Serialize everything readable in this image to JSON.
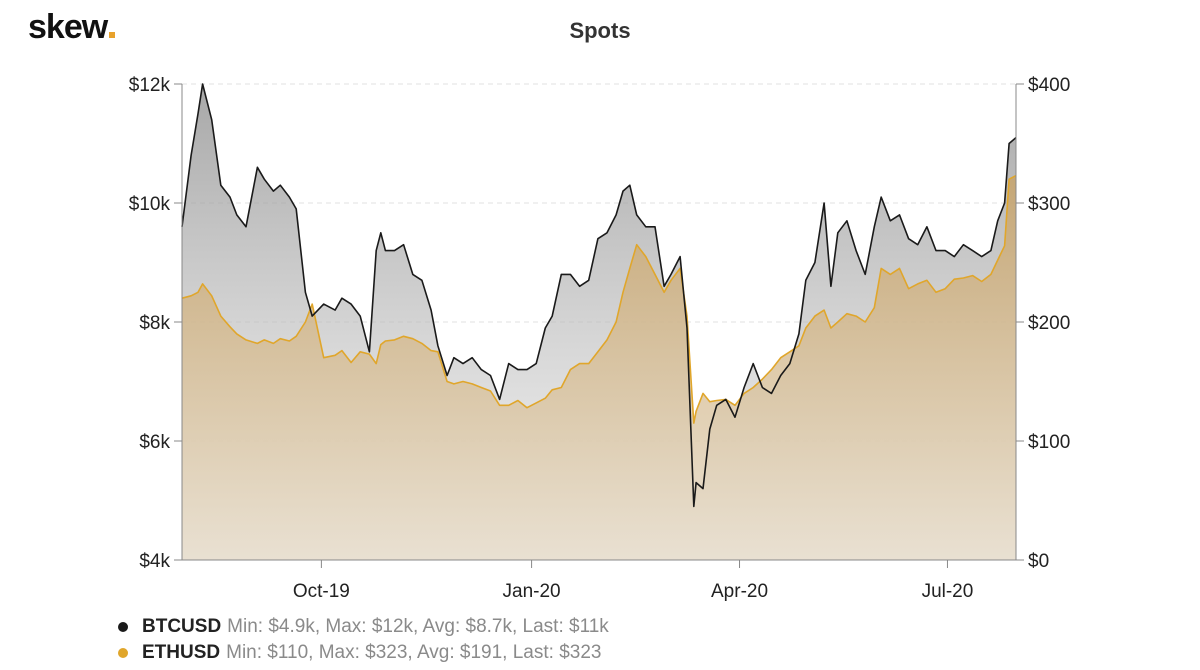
{
  "logo": {
    "text": "skew"
  },
  "chart_data": {
    "type": "area",
    "title": "Spots",
    "x_ticks": [
      "Oct-19",
      "Jan-20",
      "Apr-20",
      "Jul-20"
    ],
    "x_tick_dates": [
      "2019-10-01",
      "2020-01-01",
      "2020-04-01",
      "2020-07-01"
    ],
    "x_range": [
      "2019-08-01",
      "2020-07-31"
    ],
    "y_left": {
      "ticks": [
        "$4k",
        "$6k",
        "$8k",
        "$10k",
        "$12k"
      ],
      "values": [
        4000,
        6000,
        8000,
        10000,
        12000
      ],
      "range": [
        4000,
        12000
      ]
    },
    "y_right": {
      "ticks": [
        "$0",
        "$100",
        "$200",
        "$300",
        "$400"
      ],
      "values": [
        0,
        100,
        200,
        300,
        400
      ],
      "range": [
        0,
        400
      ]
    },
    "grid": "horizontal dashed",
    "legend_position": "bottom-left",
    "series": [
      {
        "name": "BTCUSD",
        "axis": "left",
        "color": "#1a1a1a",
        "x": [
          "2019-08-01",
          "2019-08-05",
          "2019-08-08",
          "2019-08-10",
          "2019-08-14",
          "2019-08-18",
          "2019-08-22",
          "2019-08-25",
          "2019-08-29",
          "2019-09-03",
          "2019-09-06",
          "2019-09-10",
          "2019-09-13",
          "2019-09-17",
          "2019-09-20",
          "2019-09-24",
          "2019-09-27",
          "2019-10-02",
          "2019-10-07",
          "2019-10-10",
          "2019-10-14",
          "2019-10-18",
          "2019-10-22",
          "2019-10-25",
          "2019-10-27",
          "2019-10-29",
          "2019-11-02",
          "2019-11-06",
          "2019-11-10",
          "2019-11-14",
          "2019-11-18",
          "2019-11-21",
          "2019-11-25",
          "2019-11-28",
          "2019-12-02",
          "2019-12-06",
          "2019-12-10",
          "2019-12-14",
          "2019-12-18",
          "2019-12-22",
          "2019-12-26",
          "2019-12-30",
          "2020-01-03",
          "2020-01-07",
          "2020-01-10",
          "2020-01-14",
          "2020-01-18",
          "2020-01-22",
          "2020-01-26",
          "2020-01-30",
          "2020-02-03",
          "2020-02-07",
          "2020-02-10",
          "2020-02-13",
          "2020-02-16",
          "2020-02-20",
          "2020-02-24",
          "2020-02-28",
          "2020-03-02",
          "2020-03-06",
          "2020-03-09",
          "2020-03-12",
          "2020-03-13",
          "2020-03-16",
          "2020-03-19",
          "2020-03-22",
          "2020-03-26",
          "2020-03-30",
          "2020-04-03",
          "2020-04-07",
          "2020-04-11",
          "2020-04-15",
          "2020-04-19",
          "2020-04-23",
          "2020-04-27",
          "2020-04-30",
          "2020-05-04",
          "2020-05-08",
          "2020-05-11",
          "2020-05-14",
          "2020-05-18",
          "2020-05-22",
          "2020-05-26",
          "2020-05-30",
          "2020-06-02",
          "2020-06-06",
          "2020-06-10",
          "2020-06-14",
          "2020-06-18",
          "2020-06-22",
          "2020-06-26",
          "2020-06-30",
          "2020-07-04",
          "2020-07-08",
          "2020-07-12",
          "2020-07-16",
          "2020-07-20",
          "2020-07-23",
          "2020-07-26",
          "2020-07-28",
          "2020-07-31"
        ],
        "values": [
          9600,
          10800,
          11500,
          12000,
          11400,
          10300,
          10100,
          9800,
          9600,
          10600,
          10400,
          10200,
          10300,
          10100,
          9900,
          8500,
          8100,
          8300,
          8200,
          8400,
          8300,
          8100,
          7500,
          9200,
          9500,
          9200,
          9200,
          9300,
          8800,
          8700,
          8200,
          7600,
          7100,
          7400,
          7300,
          7400,
          7200,
          7100,
          6700,
          7300,
          7200,
          7200,
          7300,
          7900,
          8100,
          8800,
          8800,
          8600,
          8700,
          9400,
          9500,
          9800,
          10200,
          10300,
          9800,
          9600,
          9600,
          8600,
          8800,
          9100,
          7900,
          4900,
          5300,
          5200,
          6200,
          6600,
          6700,
          6400,
          6900,
          7300,
          6900,
          6800,
          7100,
          7300,
          7800,
          8700,
          9000,
          10000,
          8600,
          9500,
          9700,
          9200,
          8800,
          9600,
          10100,
          9700,
          9800,
          9400,
          9300,
          9600,
          9200,
          9200,
          9100,
          9300,
          9200,
          9100,
          9200,
          9700,
          10000,
          11000,
          11100
        ],
        "stats": "Min: $4.9k, Max: $12k, Avg: $8.7k, Last: $11k"
      },
      {
        "name": "ETHUSD",
        "axis": "right",
        "color": "#e0a62b",
        "x": [
          "2019-08-01",
          "2019-08-05",
          "2019-08-08",
          "2019-08-10",
          "2019-08-14",
          "2019-08-18",
          "2019-08-22",
          "2019-08-25",
          "2019-08-29",
          "2019-09-03",
          "2019-09-06",
          "2019-09-10",
          "2019-09-13",
          "2019-09-17",
          "2019-09-20",
          "2019-09-24",
          "2019-09-27",
          "2019-10-02",
          "2019-10-07",
          "2019-10-10",
          "2019-10-14",
          "2019-10-18",
          "2019-10-22",
          "2019-10-25",
          "2019-10-27",
          "2019-10-29",
          "2019-11-02",
          "2019-11-06",
          "2019-11-10",
          "2019-11-14",
          "2019-11-18",
          "2019-11-21",
          "2019-11-25",
          "2019-11-28",
          "2019-12-02",
          "2019-12-06",
          "2019-12-10",
          "2019-12-14",
          "2019-12-18",
          "2019-12-22",
          "2019-12-26",
          "2019-12-30",
          "2020-01-03",
          "2020-01-07",
          "2020-01-10",
          "2020-01-14",
          "2020-01-18",
          "2020-01-22",
          "2020-01-26",
          "2020-01-30",
          "2020-02-03",
          "2020-02-07",
          "2020-02-10",
          "2020-02-13",
          "2020-02-16",
          "2020-02-20",
          "2020-02-24",
          "2020-02-28",
          "2020-03-02",
          "2020-03-06",
          "2020-03-09",
          "2020-03-12",
          "2020-03-13",
          "2020-03-16",
          "2020-03-19",
          "2020-03-22",
          "2020-03-26",
          "2020-03-30",
          "2020-04-03",
          "2020-04-07",
          "2020-04-11",
          "2020-04-15",
          "2020-04-19",
          "2020-04-23",
          "2020-04-27",
          "2020-04-30",
          "2020-05-04",
          "2020-05-08",
          "2020-05-11",
          "2020-05-14",
          "2020-05-18",
          "2020-05-22",
          "2020-05-26",
          "2020-05-30",
          "2020-06-02",
          "2020-06-06",
          "2020-06-10",
          "2020-06-14",
          "2020-06-18",
          "2020-06-22",
          "2020-06-26",
          "2020-06-30",
          "2020-07-04",
          "2020-07-08",
          "2020-07-12",
          "2020-07-16",
          "2020-07-20",
          "2020-07-23",
          "2020-07-26",
          "2020-07-28",
          "2020-07-31"
        ],
        "values": [
          220,
          222,
          225,
          232,
          222,
          205,
          196,
          190,
          185,
          182,
          185,
          182,
          186,
          184,
          188,
          200,
          215,
          170,
          172,
          176,
          166,
          175,
          173,
          165,
          181,
          184,
          185,
          188,
          186,
          182,
          176,
          175,
          150,
          148,
          150,
          148,
          145,
          142,
          130,
          130,
          134,
          128,
          132,
          136,
          143,
          145,
          160,
          165,
          165,
          175,
          185,
          200,
          225,
          245,
          265,
          255,
          240,
          225,
          235,
          245,
          205,
          115,
          125,
          140,
          133,
          134,
          135,
          130,
          140,
          145,
          152,
          160,
          170,
          175,
          180,
          195,
          205,
          210,
          195,
          200,
          207,
          205,
          200,
          212,
          245,
          240,
          245,
          228,
          232,
          235,
          225,
          228,
          236,
          237,
          239,
          234,
          240,
          252,
          264,
          320,
          323
        ],
        "stats": "Min: $110, Max: $323, Avg: $191, Last: $323"
      }
    ]
  }
}
